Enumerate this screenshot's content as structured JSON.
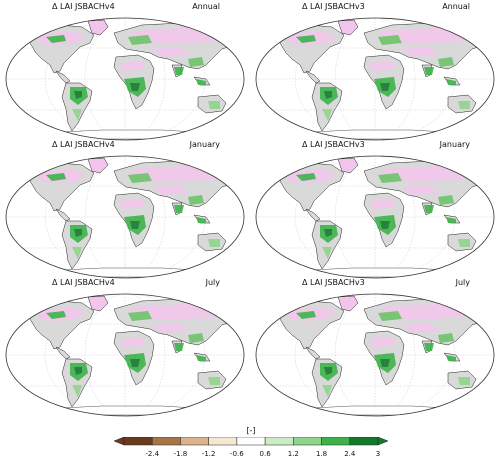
{
  "panels": [
    {
      "model": "Δ LAI JSBACHv4",
      "period": "Annual"
    },
    {
      "model": "Δ LAI JSBACHv3",
      "period": "Annual"
    },
    {
      "model": "Δ LAI JSBACHv4",
      "period": "January"
    },
    {
      "model": "Δ LAI JSBACHv3",
      "period": "January"
    },
    {
      "model": "Δ LAI JSBACHv4",
      "period": "July"
    },
    {
      "model": "Δ LAI JSBACHv3",
      "period": "July"
    }
  ],
  "colorbar": {
    "unit_label": "[-]",
    "tick_labels": [
      "-2.4",
      "-1.8",
      "-1.2",
      "-0.6",
      "0.6",
      "1.2",
      "1.8",
      "2.4",
      "3"
    ],
    "colors": [
      "#6b3a1c",
      "#a87446",
      "#d9b38e",
      "#f6e7d2",
      "#ffffff",
      "#cdeac6",
      "#8fd48a",
      "#3db24a",
      "#137a2c"
    ]
  },
  "legend_colors": {
    "reduction": "#f2c6ec",
    "strong_increase": "#137a2c",
    "increase": "#6cc36a",
    "neutral_land": "#d9d9d9"
  }
}
